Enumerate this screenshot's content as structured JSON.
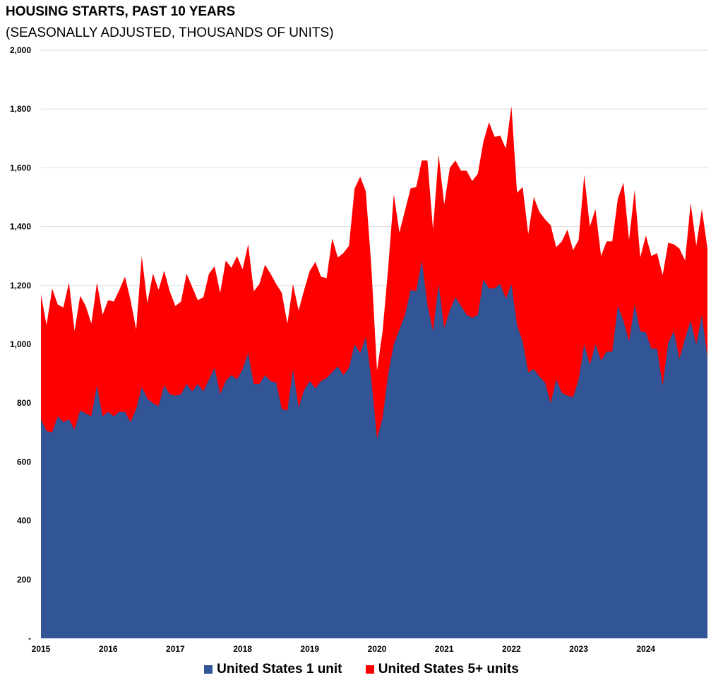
{
  "chart_data": {
    "type": "area",
    "stacked": true,
    "title": "HOUSING STARTS, PAST 10 YEARS",
    "subtitle": "(SEASONALLY ADJUSTED, THOUSANDS OF UNITS)",
    "ylim": [
      0,
      2000
    ],
    "yticks": [
      "-",
      "200",
      "400",
      "600",
      "800",
      "1,000",
      "1,200",
      "1,400",
      "1,600",
      "1,800",
      "2,000"
    ],
    "ytick_values": [
      0,
      200,
      400,
      600,
      800,
      1000,
      1200,
      1400,
      1600,
      1800,
      2000
    ],
    "xticks": [
      "2015",
      "2016",
      "2017",
      "2018",
      "2019",
      "2020",
      "2021",
      "2022",
      "2023",
      "2024"
    ],
    "x_start_year": 2015,
    "months": 120,
    "grid": true,
    "legend_position": "bottom",
    "series": [
      {
        "name": "United States 1 unit",
        "color": "#315597",
        "values": [
          745,
          705,
          700,
          755,
          735,
          745,
          710,
          775,
          765,
          755,
          860,
          755,
          770,
          755,
          770,
          770,
          735,
          780,
          855,
          815,
          800,
          790,
          860,
          830,
          825,
          830,
          865,
          840,
          865,
          840,
          880,
          920,
          830,
          875,
          895,
          880,
          915,
          970,
          865,
          865,
          895,
          875,
          870,
          780,
          775,
          915,
          785,
          845,
          875,
          850,
          875,
          885,
          905,
          925,
          895,
          920,
          1000,
          970,
          1025,
          880,
          680,
          750,
          900,
          1000,
          1050,
          1100,
          1185,
          1180,
          1285,
          1135,
          1045,
          1205,
          1055,
          1115,
          1160,
          1130,
          1100,
          1090,
          1100,
          1220,
          1190,
          1190,
          1205,
          1155,
          1205,
          1065,
          1010,
          905,
          915,
          890,
          870,
          800,
          880,
          835,
          825,
          820,
          880,
          1000,
          930,
          1000,
          945,
          975,
          975,
          1130,
          1080,
          1010,
          1135,
          1045,
          1040,
          985,
          985,
          860,
          1005,
          1045,
          950,
          1020,
          1080,
          1000,
          1100,
          955
        ]
      },
      {
        "name": "United States 5+ units",
        "color": "#ff0000",
        "total": [
          1170,
          1065,
          1190,
          1135,
          1125,
          1210,
          1045,
          1165,
          1130,
          1070,
          1210,
          1100,
          1150,
          1145,
          1185,
          1230,
          1150,
          1050,
          1300,
          1140,
          1240,
          1185,
          1250,
          1180,
          1130,
          1145,
          1240,
          1195,
          1150,
          1160,
          1240,
          1265,
          1175,
          1285,
          1260,
          1300,
          1255,
          1340,
          1180,
          1205,
          1270,
          1240,
          1205,
          1175,
          1070,
          1205,
          1115,
          1185,
          1250,
          1280,
          1230,
          1225,
          1360,
          1295,
          1310,
          1335,
          1530,
          1570,
          1520,
          1260,
          910,
          1045,
          1260,
          1510,
          1380,
          1455,
          1530,
          1535,
          1625,
          1625,
          1390,
          1645,
          1475,
          1600,
          1625,
          1590,
          1590,
          1555,
          1580,
          1690,
          1755,
          1705,
          1710,
          1665,
          1810,
          1515,
          1535,
          1375,
          1500,
          1450,
          1425,
          1405,
          1330,
          1350,
          1390,
          1320,
          1355,
          1575,
          1400,
          1460,
          1300,
          1350,
          1350,
          1495,
          1550,
          1355,
          1525,
          1295,
          1370,
          1300,
          1310,
          1235,
          1345,
          1340,
          1325,
          1285,
          1480,
          1335,
          1460,
          1325
        ]
      }
    ]
  }
}
